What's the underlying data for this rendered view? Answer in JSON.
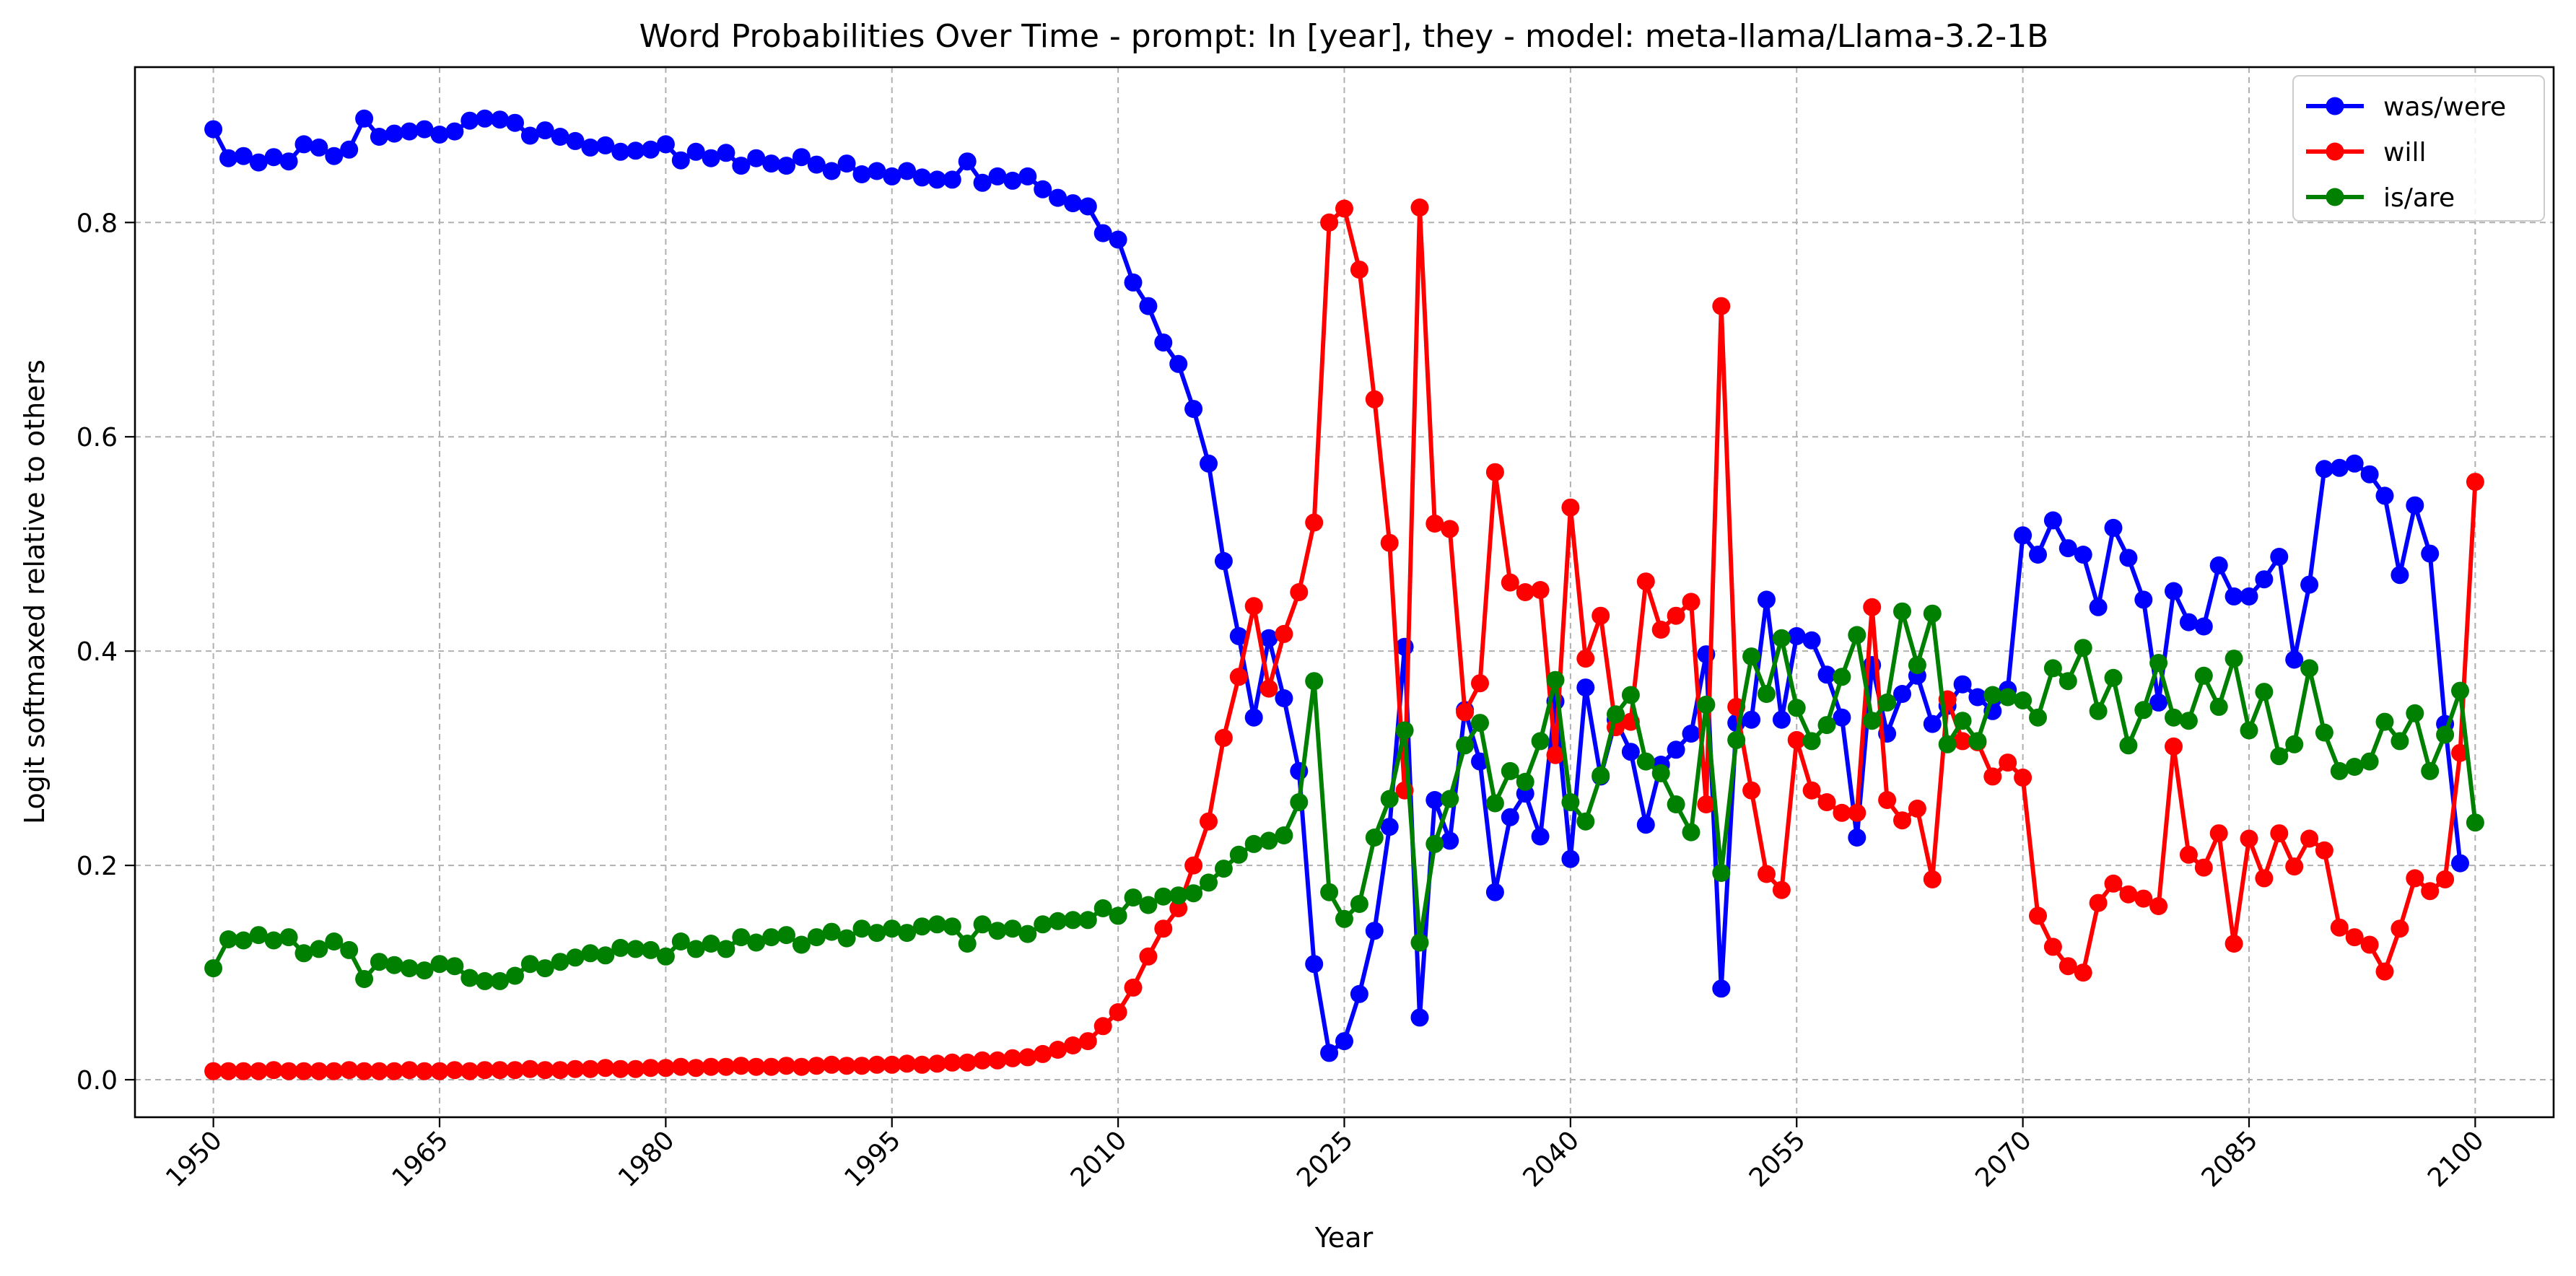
{
  "chart_data": {
    "type": "line",
    "title": "Word Probabilities Over Time - prompt: In [year], they - model: meta-llama/Llama-3.2-1B",
    "xlabel": "Year",
    "ylabel": "Logit softmaxed relative to others",
    "xlim": [
      1950,
      2100
    ],
    "ylim": [
      -0.035,
      0.945
    ],
    "x_ticks": [
      "1950",
      "1965",
      "1980",
      "1995",
      "2010",
      "2025",
      "2040",
      "2055",
      "2070",
      "2085",
      "2100"
    ],
    "y_ticks": [
      "0.0",
      "0.2",
      "0.4",
      "0.6",
      "0.8"
    ],
    "grid": true,
    "legend_position": "top-right",
    "x_start": 1950,
    "series": [
      {
        "name": "was/were",
        "color": "#0000ff",
        "values": [
          0.887,
          0.86,
          0.862,
          0.856,
          0.861,
          0.857,
          0.873,
          0.87,
          0.862,
          0.868,
          0.897,
          0.88,
          0.883,
          0.885,
          0.887,
          0.882,
          0.885,
          0.895,
          0.897,
          0.896,
          0.893,
          0.881,
          0.886,
          0.88,
          0.876,
          0.87,
          0.872,
          0.866,
          0.867,
          0.868,
          0.873,
          0.858,
          0.866,
          0.86,
          0.865,
          0.853,
          0.86,
          0.855,
          0.853,
          0.861,
          0.854,
          0.848,
          0.855,
          0.845,
          0.848,
          0.843,
          0.848,
          0.842,
          0.84,
          0.84,
          0.857,
          0.837,
          0.843,
          0.839,
          0.843,
          0.831,
          0.823,
          0.818,
          0.815,
          0.79,
          0.784,
          0.744,
          0.722,
          0.688,
          0.668,
          0.626,
          0.575,
          0.484,
          0.414,
          0.338,
          0.412,
          0.356,
          0.288,
          0.108,
          0.025,
          0.036,
          0.08,
          0.139,
          0.236,
          0.404,
          0.058,
          0.261,
          0.223,
          0.345,
          0.297,
          0.175,
          0.245,
          0.267,
          0.227,
          0.353,
          0.206,
          0.366,
          0.283,
          0.336,
          0.306,
          0.238,
          0.294,
          0.308,
          0.323,
          0.397,
          0.085,
          0.333,
          0.336,
          0.448,
          0.336,
          0.414,
          0.41,
          0.378,
          0.338,
          0.226,
          0.387,
          0.323,
          0.36,
          0.377,
          0.332,
          0.349,
          0.369,
          0.357,
          0.344,
          0.364,
          0.508,
          0.49,
          0.522,
          0.496,
          0.49,
          0.441,
          0.515,
          0.487,
          0.448,
          0.352,
          0.456,
          0.427,
          0.423,
          0.48,
          0.451,
          0.451,
          0.467,
          0.488,
          0.392,
          0.462,
          0.57,
          0.571,
          0.575,
          0.565,
          0.545,
          0.471,
          0.536,
          0.491,
          0.332,
          0.202
        ]
      },
      {
        "name": "will",
        "color": "#ff0000",
        "values": [
          0.008,
          0.008,
          0.008,
          0.008,
          0.009,
          0.008,
          0.008,
          0.008,
          0.008,
          0.009,
          0.008,
          0.008,
          0.008,
          0.009,
          0.008,
          0.008,
          0.009,
          0.008,
          0.009,
          0.009,
          0.009,
          0.01,
          0.009,
          0.009,
          0.01,
          0.01,
          0.011,
          0.01,
          0.01,
          0.011,
          0.011,
          0.012,
          0.011,
          0.012,
          0.012,
          0.013,
          0.012,
          0.012,
          0.013,
          0.012,
          0.013,
          0.014,
          0.013,
          0.013,
          0.014,
          0.014,
          0.015,
          0.014,
          0.015,
          0.016,
          0.016,
          0.018,
          0.018,
          0.02,
          0.021,
          0.024,
          0.028,
          0.032,
          0.036,
          0.05,
          0.063,
          0.086,
          0.115,
          0.141,
          0.16,
          0.2,
          0.241,
          0.319,
          0.376,
          0.442,
          0.365,
          0.416,
          0.455,
          0.52,
          0.8,
          0.813,
          0.756,
          0.635,
          0.501,
          0.27,
          0.814,
          0.519,
          0.514,
          0.343,
          0.37,
          0.567,
          0.464,
          0.455,
          0.457,
          0.303,
          0.534,
          0.393,
          0.433,
          0.329,
          0.334,
          0.465,
          0.42,
          0.433,
          0.446,
          0.257,
          0.722,
          0.348,
          0.27,
          0.192,
          0.177,
          0.317,
          0.27,
          0.259,
          0.249,
          0.249,
          0.441,
          0.261,
          0.242,
          0.253,
          0.187,
          0.355,
          0.316,
          0.315,
          0.283,
          0.296,
          0.282,
          0.153,
          0.124,
          0.106,
          0.1,
          0.165,
          0.183,
          0.173,
          0.169,
          0.162,
          0.311,
          0.21,
          0.198,
          0.23,
          0.127,
          0.225,
          0.188,
          0.23,
          0.199,
          0.225,
          0.214,
          0.142,
          0.133,
          0.126,
          0.101,
          0.141,
          0.188,
          0.176,
          0.187,
          0.305,
          0.558
        ]
      },
      {
        "name": "is/are",
        "color": "#008000",
        "values": [
          0.104,
          0.131,
          0.13,
          0.135,
          0.13,
          0.133,
          0.118,
          0.122,
          0.129,
          0.121,
          0.094,
          0.11,
          0.107,
          0.104,
          0.102,
          0.108,
          0.106,
          0.095,
          0.092,
          0.092,
          0.097,
          0.108,
          0.104,
          0.11,
          0.114,
          0.118,
          0.116,
          0.123,
          0.122,
          0.121,
          0.115,
          0.129,
          0.122,
          0.127,
          0.122,
          0.133,
          0.128,
          0.133,
          0.135,
          0.126,
          0.133,
          0.138,
          0.132,
          0.141,
          0.137,
          0.141,
          0.137,
          0.143,
          0.145,
          0.143,
          0.127,
          0.145,
          0.139,
          0.141,
          0.136,
          0.145,
          0.148,
          0.149,
          0.149,
          0.16,
          0.153,
          0.17,
          0.163,
          0.171,
          0.172,
          0.174,
          0.184,
          0.197,
          0.21,
          0.22,
          0.223,
          0.228,
          0.259,
          0.372,
          0.175,
          0.15,
          0.164,
          0.226,
          0.262,
          0.326,
          0.128,
          0.22,
          0.262,
          0.312,
          0.333,
          0.258,
          0.288,
          0.278,
          0.316,
          0.373,
          0.259,
          0.241,
          0.284,
          0.341,
          0.359,
          0.297,
          0.286,
          0.257,
          0.231,
          0.35,
          0.193,
          0.317,
          0.395,
          0.36,
          0.412,
          0.347,
          0.316,
          0.331,
          0.376,
          0.415,
          0.335,
          0.352,
          0.437,
          0.387,
          0.435,
          0.313,
          0.335,
          0.316,
          0.359,
          0.357,
          0.354,
          0.338,
          0.384,
          0.372,
          0.403,
          0.344,
          0.375,
          0.312,
          0.345,
          0.389,
          0.338,
          0.335,
          0.377,
          0.348,
          0.393,
          0.326,
          0.362,
          0.302,
          0.313,
          0.384,
          0.324,
          0.288,
          0.292,
          0.297,
          0.334,
          0.316,
          0.342,
          0.288,
          0.322,
          0.363,
          0.24
        ]
      }
    ]
  }
}
